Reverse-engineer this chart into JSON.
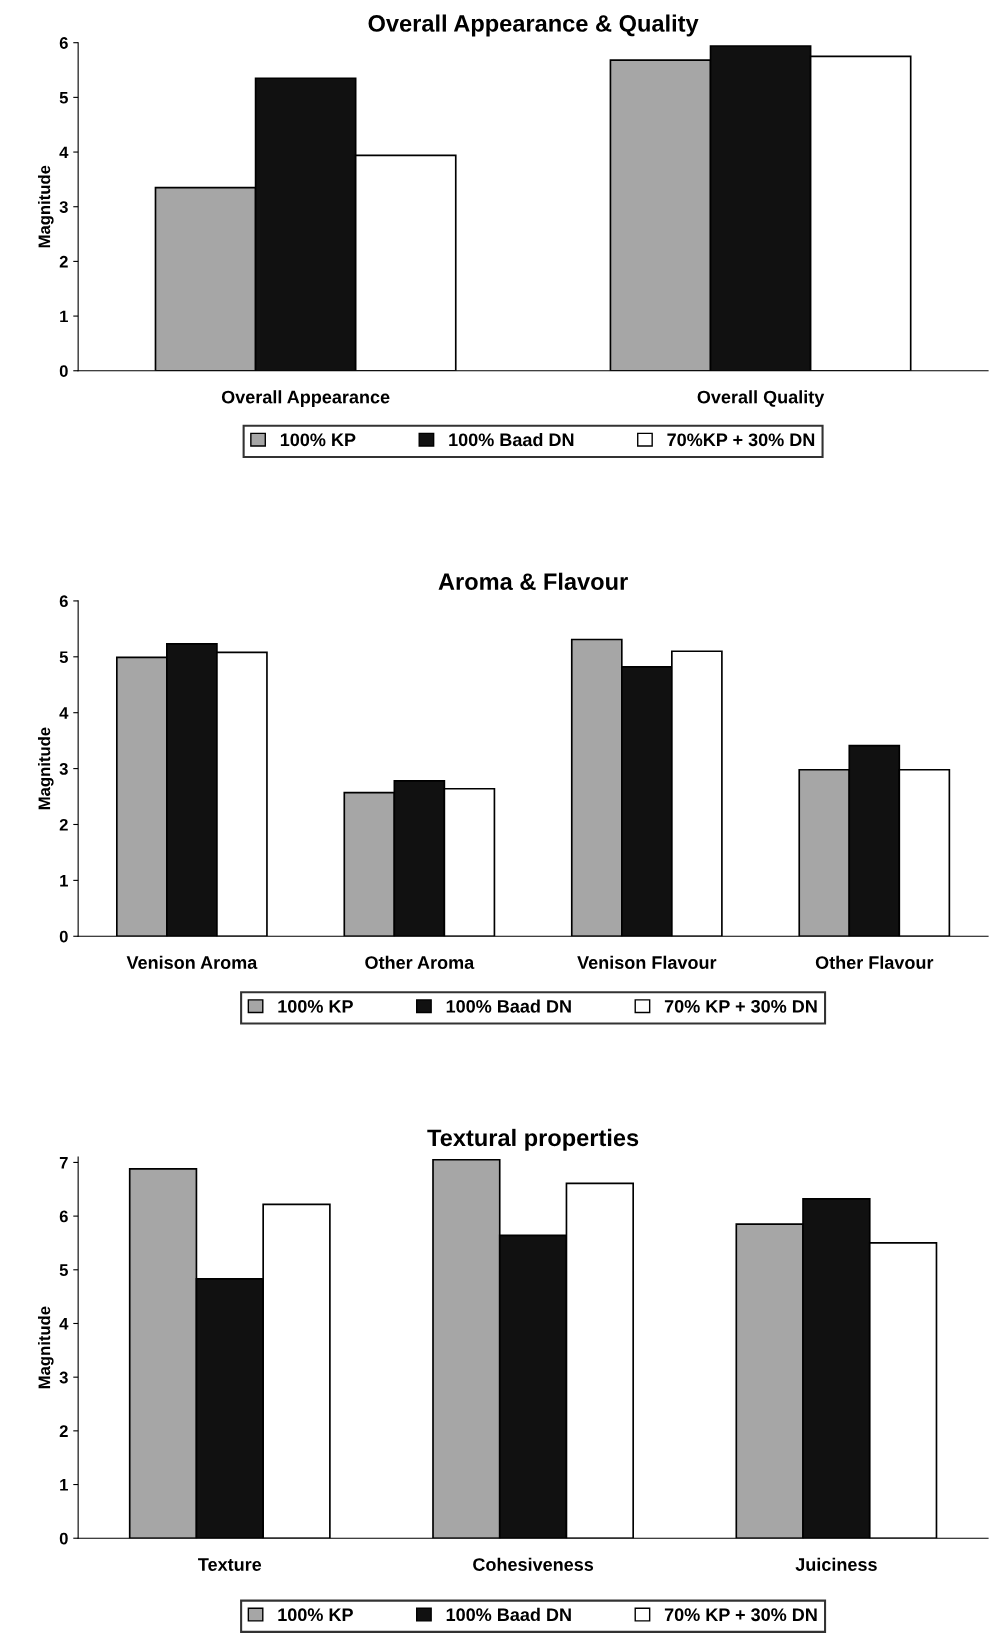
{
  "chart_data": [
    {
      "type": "bar",
      "title": "Overall Appearance & Quality",
      "ylabel": "Magnitude",
      "categories": [
        "Overall Appearance",
        "Overall Quality"
      ],
      "ylim": [
        0,
        6
      ],
      "yticks": [
        0,
        1,
        2,
        3,
        4,
        5,
        6
      ],
      "grid": false,
      "legend": "bottom",
      "series": [
        {
          "name": "100% KP",
          "color": "#a6a6a6",
          "values": [
            3.35,
            5.68
          ]
        },
        {
          "name": "100% Baad DN",
          "color": "#111111",
          "values": [
            5.35,
            5.94
          ]
        },
        {
          "name": "70%KP + 30% DN",
          "color": "#ffffff",
          "values": [
            3.94,
            5.75
          ]
        }
      ]
    },
    {
      "type": "bar",
      "title": "Aroma & Flavour",
      "ylabel": "Magnitude",
      "categories": [
        "Venison Aroma",
        "Other Aroma",
        "Venison Flavour",
        "Other Flavour"
      ],
      "ylim": [
        0,
        6
      ],
      "yticks": [
        0,
        1,
        2,
        3,
        4,
        5,
        6
      ],
      "grid": false,
      "legend": "bottom",
      "series": [
        {
          "name": "100% KP",
          "color": "#a6a6a6",
          "values": [
            4.99,
            2.57,
            5.31,
            2.98
          ]
        },
        {
          "name": "100% Baad DN",
          "color": "#111111",
          "values": [
            5.23,
            2.78,
            4.82,
            3.41
          ]
        },
        {
          "name": "70% KP + 30% DN",
          "color": "#ffffff",
          "values": [
            5.08,
            2.64,
            5.1,
            2.98
          ]
        }
      ]
    },
    {
      "type": "bar",
      "title": "Textural properties",
      "ylabel": "Magnitude",
      "categories": [
        "Texture",
        "Cohesiveness",
        "Juiciness"
      ],
      "ylim": [
        0,
        7.1
      ],
      "yticks": [
        0,
        1,
        2,
        3,
        4,
        5,
        6,
        7
      ],
      "grid": false,
      "legend": "bottom",
      "series": [
        {
          "name": "100% KP",
          "color": "#a6a6a6",
          "values": [
            6.88,
            7.05,
            5.85
          ]
        },
        {
          "name": "100% Baad DN",
          "color": "#111111",
          "values": [
            4.83,
            5.64,
            6.32
          ]
        },
        {
          "name": "70% KP + 30% DN",
          "color": "#ffffff",
          "values": [
            6.22,
            6.61,
            5.5
          ]
        }
      ]
    }
  ]
}
